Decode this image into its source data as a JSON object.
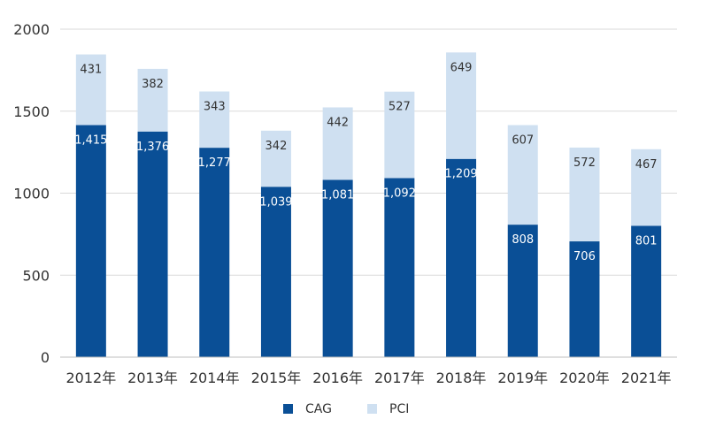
{
  "chart_data": {
    "type": "bar",
    "stacked": true,
    "categories": [
      "2012年",
      "2013年",
      "2014年",
      "2015年",
      "2016年",
      "2017年",
      "2018年",
      "2019年",
      "2020年",
      "2021年"
    ],
    "series": [
      {
        "name": "CAG",
        "color": "#0a4f96",
        "values": [
          1415,
          1376,
          1277,
          1039,
          1081,
          1092,
          1209,
          808,
          706,
          801
        ],
        "labels": [
          "1,415",
          "1,376",
          "1,277",
          "1,039",
          "1,081",
          "1,092",
          "1,209",
          "808",
          "706",
          "801"
        ]
      },
      {
        "name": "PCI",
        "color": "#cfe0f1",
        "values": [
          431,
          382,
          343,
          342,
          442,
          527,
          649,
          607,
          572,
          467
        ],
        "labels": [
          "431",
          "382",
          "343",
          "342",
          "442",
          "527",
          "649",
          "607",
          "572",
          "467"
        ]
      }
    ],
    "ylim": [
      0,
      2000
    ],
    "yticks": [
      "0",
      "500",
      "1000",
      "1500",
      "2000"
    ],
    "ytick_values": [
      0,
      500,
      1000,
      1500,
      2000
    ],
    "grid": true,
    "legend_position": "bottom",
    "colors": {
      "gridline": "#d9d9d9",
      "axis": "#bfbfbf"
    }
  }
}
